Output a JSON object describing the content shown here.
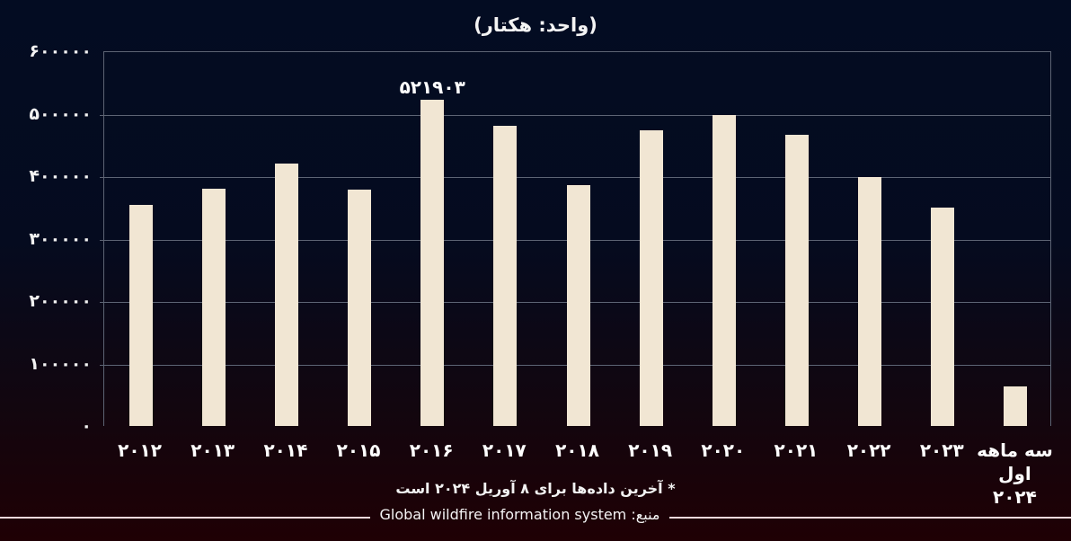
{
  "chart": {
    "subtitle": "(واحد: هکتار)",
    "peak_label": "۵۲۱۹۰۳",
    "footnote": "* آخرین داده‌ها برای ۸ آوریل ۲۰۲۴ است",
    "source_prefix": "منبع:",
    "source_name": "Global wildfire information system",
    "colors": {
      "bar": "#f1e6d3",
      "background_top": "#030c22",
      "background_bottom": "#1f0004",
      "grid": "#5d6474"
    }
  },
  "y_ticks": [
    "۶۰۰۰۰۰",
    "۵۰۰۰۰۰",
    "۴۰۰۰۰۰",
    "۳۰۰۰۰۰",
    "۲۰۰۰۰۰",
    "۱۰۰۰۰۰",
    "۰"
  ],
  "x_labels": [
    "۲۰۱۲",
    "۲۰۱۳",
    "۲۰۱۴",
    "۲۰۱۵",
    "۲۰۱۶",
    "۲۰۱۷",
    "۲۰۱۸",
    "۲۰۱۹",
    "۲۰۲۰",
    "۲۰۲۱",
    "۲۰۲۲",
    "۲۰۲۳",
    "سه ماهه اول ۲۰۲۴"
  ],
  "chart_data": {
    "type": "bar",
    "title": "",
    "subtitle": "(واحد: هکتار)",
    "xlabel": "",
    "ylabel": "هکتار",
    "categories": [
      "2012",
      "2013",
      "2014",
      "2015",
      "2016",
      "2017",
      "2018",
      "2019",
      "2020",
      "2021",
      "2022",
      "2023",
      "Q1 2024"
    ],
    "values": [
      354000,
      380000,
      420000,
      378000,
      521903,
      480000,
      386000,
      473000,
      498000,
      466000,
      399000,
      350000,
      63000
    ],
    "ylim": [
      0,
      600000
    ],
    "yticks": [
      0,
      100000,
      200000,
      300000,
      400000,
      500000,
      600000
    ],
    "grid": true,
    "legend": "none",
    "annotations": [
      {
        "category": "2016",
        "text": "521903"
      }
    ],
    "footnote": "* آخرین داده‌ها برای ۸ آوریل ۲۰۲۴ است",
    "source": "منبع: Global wildfire information system"
  }
}
